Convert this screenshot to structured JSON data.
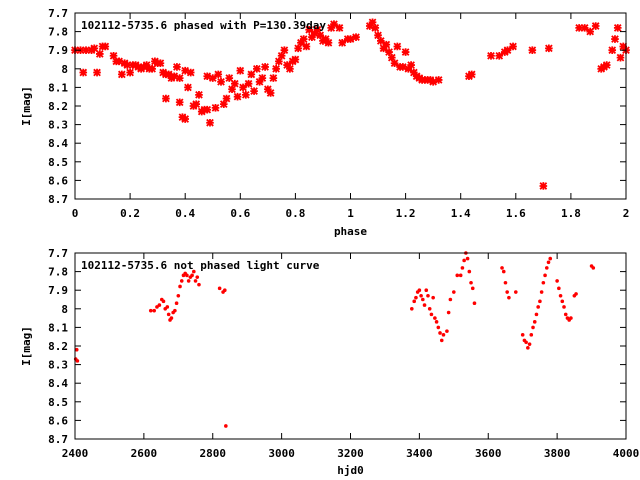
{
  "chart_data": [
    {
      "type": "scatter",
      "title": "102112-5735.6 phased with P=130.39day",
      "xlabel": "phase",
      "ylabel": "I[mag]",
      "xlim": [
        0,
        2
      ],
      "ylim": [
        8.7,
        7.7
      ],
      "y_inverted": true,
      "grid": false,
      "marker_color": "#ff0000",
      "xticks": [
        0,
        0.2,
        0.4,
        0.6,
        0.8,
        1,
        1.2,
        1.4,
        1.6,
        1.8,
        2
      ],
      "xtick_labels": [
        "0",
        "0.2",
        "0.4",
        "0.6",
        "0.8",
        "1",
        "1.2",
        "1.4",
        "1.6",
        "1.8",
        "2"
      ],
      "yticks": [
        7.7,
        7.8,
        7.9,
        8,
        8.1,
        8.2,
        8.3,
        8.4,
        8.5,
        8.6,
        8.7
      ],
      "ytick_labels": [
        "7.7",
        "7.8",
        "7.9",
        "8",
        "8.1",
        "8.2",
        "8.3",
        "8.4",
        "8.5",
        "8.6",
        "8.7"
      ],
      "points": [
        [
          0.0,
          7.9
        ],
        [
          0.02,
          7.9
        ],
        [
          0.03,
          8.02
        ],
        [
          0.04,
          7.9
        ],
        [
          0.06,
          7.9
        ],
        [
          0.07,
          7.89
        ],
        [
          0.08,
          8.02
        ],
        [
          0.09,
          7.92
        ],
        [
          0.1,
          7.88
        ],
        [
          0.11,
          7.88
        ],
        [
          0.14,
          7.93
        ],
        [
          0.15,
          7.96
        ],
        [
          0.16,
          7.96
        ],
        [
          0.17,
          8.03
        ],
        [
          0.18,
          7.97
        ],
        [
          0.19,
          7.98
        ],
        [
          0.2,
          8.02
        ],
        [
          0.21,
          7.98
        ],
        [
          0.22,
          7.98
        ],
        [
          0.23,
          7.99
        ],
        [
          0.24,
          8.0
        ],
        [
          0.25,
          7.99
        ],
        [
          0.26,
          7.98
        ],
        [
          0.27,
          8.0
        ],
        [
          0.28,
          8.0
        ],
        [
          0.29,
          7.96
        ],
        [
          0.3,
          7.97
        ],
        [
          0.31,
          7.97
        ],
        [
          0.32,
          8.02
        ],
        [
          0.33,
          8.03
        ],
        [
          0.33,
          8.16
        ],
        [
          0.34,
          8.03
        ],
        [
          0.35,
          8.05
        ],
        [
          0.36,
          8.04
        ],
        [
          0.37,
          7.99
        ],
        [
          0.38,
          8.05
        ],
        [
          0.38,
          8.18
        ],
        [
          0.39,
          8.26
        ],
        [
          0.4,
          8.27
        ],
        [
          0.4,
          8.01
        ],
        [
          0.41,
          8.1
        ],
        [
          0.42,
          8.02
        ],
        [
          0.43,
          8.2
        ],
        [
          0.44,
          8.19
        ],
        [
          0.45,
          8.14
        ],
        [
          0.46,
          8.23
        ],
        [
          0.47,
          8.22
        ],
        [
          0.48,
          8.04
        ],
        [
          0.48,
          8.22
        ],
        [
          0.49,
          8.29
        ],
        [
          0.5,
          8.05
        ],
        [
          0.51,
          8.21
        ],
        [
          0.52,
          8.03
        ],
        [
          0.53,
          8.07
        ],
        [
          0.54,
          8.19
        ],
        [
          0.55,
          8.16
        ],
        [
          0.56,
          8.05
        ],
        [
          0.57,
          8.11
        ],
        [
          0.58,
          8.08
        ],
        [
          0.59,
          8.15
        ],
        [
          0.6,
          8.01
        ],
        [
          0.61,
          8.1
        ],
        [
          0.62,
          8.14
        ],
        [
          0.63,
          8.08
        ],
        [
          0.64,
          8.03
        ],
        [
          0.65,
          8.12
        ],
        [
          0.66,
          8.0
        ],
        [
          0.67,
          8.07
        ],
        [
          0.68,
          8.05
        ],
        [
          0.69,
          7.99
        ],
        [
          0.7,
          8.11
        ],
        [
          0.71,
          8.13
        ],
        [
          0.72,
          8.05
        ],
        [
          0.73,
          8.0
        ],
        [
          0.74,
          7.96
        ],
        [
          0.75,
          7.93
        ],
        [
          0.76,
          7.9
        ],
        [
          0.77,
          7.98
        ],
        [
          0.78,
          8.0
        ],
        [
          0.79,
          7.96
        ],
        [
          0.8,
          7.95
        ],
        [
          0.81,
          7.89
        ],
        [
          0.82,
          7.86
        ],
        [
          0.83,
          7.84
        ],
        [
          0.84,
          7.88
        ],
        [
          0.85,
          7.79
        ],
        [
          0.86,
          7.83
        ],
        [
          0.87,
          7.81
        ],
        [
          0.88,
          7.79
        ],
        [
          0.89,
          7.82
        ],
        [
          0.9,
          7.85
        ],
        [
          0.91,
          7.84
        ],
        [
          0.92,
          7.86
        ],
        [
          0.93,
          7.78
        ],
        [
          0.94,
          7.76
        ],
        [
          0.96,
          7.78
        ],
        [
          0.97,
          7.86
        ],
        [
          0.99,
          7.84
        ],
        [
          1.0,
          7.84
        ],
        [
          1.02,
          7.83
        ],
        [
          1.07,
          7.77
        ],
        [
          1.08,
          7.75
        ],
        [
          1.09,
          7.78
        ],
        [
          1.1,
          7.82
        ],
        [
          1.11,
          7.85
        ],
        [
          1.12,
          7.89
        ],
        [
          1.13,
          7.87
        ],
        [
          1.14,
          7.91
        ],
        [
          1.15,
          7.94
        ],
        [
          1.16,
          7.97
        ],
        [
          1.17,
          7.88
        ],
        [
          1.18,
          7.99
        ],
        [
          1.19,
          7.99
        ],
        [
          1.2,
          7.91
        ],
        [
          1.21,
          8.0
        ],
        [
          1.22,
          7.98
        ],
        [
          1.23,
          8.02
        ],
        [
          1.24,
          8.04
        ],
        [
          1.25,
          8.05
        ],
        [
          1.26,
          8.06
        ],
        [
          1.27,
          8.06
        ],
        [
          1.28,
          8.06
        ],
        [
          1.29,
          8.06
        ],
        [
          1.3,
          8.07
        ],
        [
          1.32,
          8.06
        ],
        [
          1.43,
          8.04
        ],
        [
          1.44,
          8.03
        ],
        [
          1.51,
          7.93
        ],
        [
          1.54,
          7.93
        ],
        [
          1.56,
          7.91
        ],
        [
          1.57,
          7.9
        ],
        [
          1.59,
          7.88
        ],
        [
          1.66,
          7.9
        ],
        [
          1.7,
          8.63
        ],
        [
          1.72,
          7.89
        ],
        [
          1.83,
          7.78
        ],
        [
          1.85,
          7.78
        ],
        [
          1.87,
          7.8
        ],
        [
          1.89,
          7.77
        ],
        [
          1.91,
          8.0
        ],
        [
          1.92,
          7.99
        ],
        [
          1.93,
          7.98
        ],
        [
          1.95,
          7.9
        ],
        [
          1.96,
          7.84
        ],
        [
          1.97,
          7.78
        ],
        [
          1.98,
          7.94
        ],
        [
          1.99,
          7.88
        ],
        [
          2.0,
          7.9
        ]
      ]
    },
    {
      "type": "scatter",
      "title": "102112-5735.6 not phased light curve",
      "xlabel": "hjd0",
      "ylabel": "I[mag]",
      "xlim": [
        2400,
        4000
      ],
      "ylim": [
        8.7,
        7.7
      ],
      "y_inverted": true,
      "grid": false,
      "marker_color": "#ff0000",
      "xticks": [
        2400,
        2600,
        2800,
        3000,
        3200,
        3400,
        3600,
        3800,
        4000
      ],
      "xtick_labels": [
        "2400",
        "2600",
        "2800",
        "3000",
        "3200",
        "3400",
        "3600",
        "3800",
        "4000"
      ],
      "yticks": [
        7.7,
        7.8,
        7.9,
        8,
        8.1,
        8.2,
        8.3,
        8.4,
        8.5,
        8.6,
        8.7
      ],
      "ytick_labels": [
        "7.7",
        "7.8",
        "7.9",
        "8",
        "8.1",
        "8.2",
        "8.3",
        "8.4",
        "8.5",
        "8.6",
        "8.7"
      ],
      "points": [
        [
          2402,
          8.27
        ],
        [
          2405,
          8.22
        ],
        [
          2407,
          8.28
        ],
        [
          2620,
          8.01
        ],
        [
          2630,
          8.01
        ],
        [
          2638,
          7.99
        ],
        [
          2645,
          7.98
        ],
        [
          2652,
          7.95
        ],
        [
          2657,
          7.96
        ],
        [
          2662,
          8.0
        ],
        [
          2668,
          7.99
        ],
        [
          2672,
          8.03
        ],
        [
          2676,
          8.06
        ],
        [
          2680,
          8.05
        ],
        [
          2685,
          8.02
        ],
        [
          2690,
          8.01
        ],
        [
          2695,
          7.97
        ],
        [
          2700,
          7.93
        ],
        [
          2705,
          7.88
        ],
        [
          2710,
          7.85
        ],
        [
          2715,
          7.82
        ],
        [
          2720,
          7.81
        ],
        [
          2725,
          7.82
        ],
        [
          2730,
          7.85
        ],
        [
          2735,
          7.83
        ],
        [
          2740,
          7.82
        ],
        [
          2745,
          7.8
        ],
        [
          2750,
          7.85
        ],
        [
          2755,
          7.83
        ],
        [
          2760,
          7.87
        ],
        [
          2820,
          7.89
        ],
        [
          2830,
          7.91
        ],
        [
          2835,
          7.9
        ],
        [
          2838,
          8.63
        ],
        [
          3378,
          8.0
        ],
        [
          3385,
          7.96
        ],
        [
          3390,
          7.94
        ],
        [
          3395,
          7.91
        ],
        [
          3400,
          7.9
        ],
        [
          3405,
          7.93
        ],
        [
          3410,
          7.95
        ],
        [
          3415,
          7.98
        ],
        [
          3420,
          7.9
        ],
        [
          3425,
          7.93
        ],
        [
          3430,
          8.0
        ],
        [
          3435,
          8.03
        ],
        [
          3440,
          7.94
        ],
        [
          3445,
          8.05
        ],
        [
          3450,
          8.07
        ],
        [
          3455,
          8.1
        ],
        [
          3460,
          8.13
        ],
        [
          3465,
          8.17
        ],
        [
          3470,
          8.14
        ],
        [
          3480,
          8.12
        ],
        [
          3485,
          8.02
        ],
        [
          3490,
          7.95
        ],
        [
          3500,
          7.91
        ],
        [
          3510,
          7.82
        ],
        [
          3520,
          7.82
        ],
        [
          3525,
          7.78
        ],
        [
          3530,
          7.74
        ],
        [
          3535,
          7.7
        ],
        [
          3540,
          7.73
        ],
        [
          3545,
          7.8
        ],
        [
          3550,
          7.86
        ],
        [
          3555,
          7.89
        ],
        [
          3560,
          7.97
        ],
        [
          3640,
          7.78
        ],
        [
          3645,
          7.8
        ],
        [
          3650,
          7.86
        ],
        [
          3655,
          7.91
        ],
        [
          3660,
          7.94
        ],
        [
          3680,
          7.91
        ],
        [
          3700,
          8.14
        ],
        [
          3705,
          8.17
        ],
        [
          3710,
          8.18
        ],
        [
          3715,
          8.21
        ],
        [
          3720,
          8.19
        ],
        [
          3725,
          8.14
        ],
        [
          3730,
          8.1
        ],
        [
          3735,
          8.07
        ],
        [
          3740,
          8.03
        ],
        [
          3745,
          7.99
        ],
        [
          3750,
          7.96
        ],
        [
          3755,
          7.91
        ],
        [
          3760,
          7.86
        ],
        [
          3765,
          7.82
        ],
        [
          3770,
          7.78
        ],
        [
          3775,
          7.75
        ],
        [
          3780,
          7.73
        ],
        [
          3800,
          7.85
        ],
        [
          3805,
          7.89
        ],
        [
          3810,
          7.93
        ],
        [
          3815,
          7.96
        ],
        [
          3820,
          7.99
        ],
        [
          3825,
          8.03
        ],
        [
          3830,
          8.05
        ],
        [
          3835,
          8.06
        ],
        [
          3840,
          8.05
        ],
        [
          3850,
          7.93
        ],
        [
          3855,
          7.92
        ],
        [
          3900,
          7.77
        ],
        [
          3905,
          7.78
        ]
      ]
    }
  ]
}
